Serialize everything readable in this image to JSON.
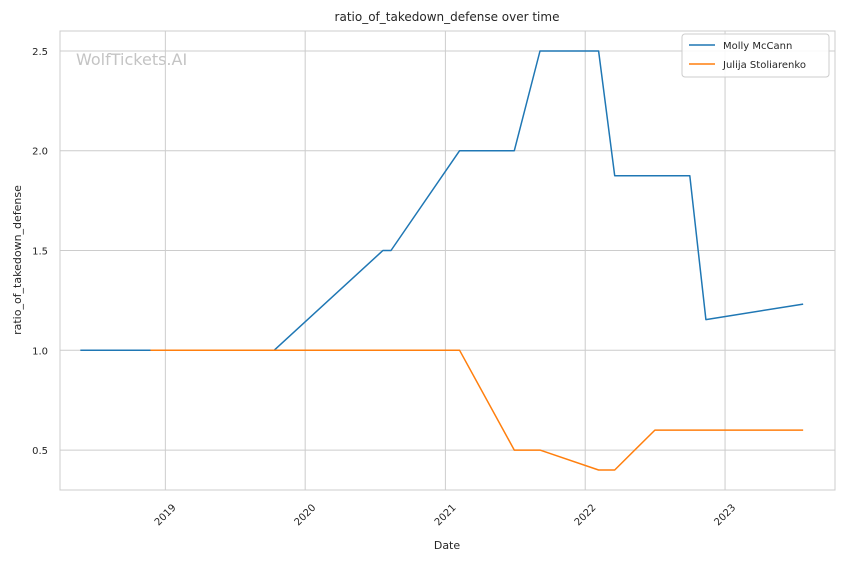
{
  "watermark": "WolfTickets.AI",
  "chart_data": {
    "type": "line",
    "title": "ratio_of_takedown_defense over time",
    "xlabel": "Date",
    "ylabel": "ratio_of_takedown_defense",
    "xlim": [
      "2018-04-01",
      "2023-10-15"
    ],
    "ylim": [
      0.3,
      2.6
    ],
    "x_ticks": [
      {
        "label": "2019",
        "date": "2019-01-01"
      },
      {
        "label": "2020",
        "date": "2020-01-01"
      },
      {
        "label": "2021",
        "date": "2021-01-01"
      },
      {
        "label": "2022",
        "date": "2022-01-01"
      },
      {
        "label": "2023",
        "date": "2023-01-01"
      }
    ],
    "y_ticks": [
      {
        "label": "0.5",
        "value": 0.5
      },
      {
        "label": "1.0",
        "value": 1.0
      },
      {
        "label": "1.5",
        "value": 1.5
      },
      {
        "label": "2.0",
        "value": 2.0
      },
      {
        "label": "2.5",
        "value": 2.5
      }
    ],
    "grid": true,
    "legend_position": "top-right",
    "series": [
      {
        "name": "Molly McCann",
        "color": "#1f77b4",
        "points": [
          {
            "x": "2018-05-26",
            "y": 1.0
          },
          {
            "x": "2018-11-25",
            "y": 1.0
          },
          {
            "x": "2019-10-12",
            "y": 1.0
          },
          {
            "x": "2020-07-22",
            "y": 1.5
          },
          {
            "x": "2020-08-12",
            "y": 1.5
          },
          {
            "x": "2021-02-07",
            "y": 2.0
          },
          {
            "x": "2021-06-30",
            "y": 2.0
          },
          {
            "x": "2021-09-05",
            "y": 2.5
          },
          {
            "x": "2022-02-05",
            "y": 2.5
          },
          {
            "x": "2022-03-19",
            "y": 1.875
          },
          {
            "x": "2022-10-01",
            "y": 1.875
          },
          {
            "x": "2022-11-12",
            "y": 1.154
          },
          {
            "x": "2023-07-22",
            "y": 1.231
          }
        ]
      },
      {
        "name": "Julija Stoliarenko",
        "color": "#ff7f0e",
        "points": [
          {
            "x": "2018-11-25",
            "y": 1.0
          },
          {
            "x": "2021-02-07",
            "y": 1.0
          },
          {
            "x": "2021-06-30",
            "y": 0.5
          },
          {
            "x": "2021-09-05",
            "y": 0.5
          },
          {
            "x": "2022-02-05",
            "y": 0.4
          },
          {
            "x": "2022-03-19",
            "y": 0.4
          },
          {
            "x": "2022-07-02",
            "y": 0.6
          },
          {
            "x": "2023-07-22",
            "y": 0.6
          }
        ]
      }
    ]
  }
}
